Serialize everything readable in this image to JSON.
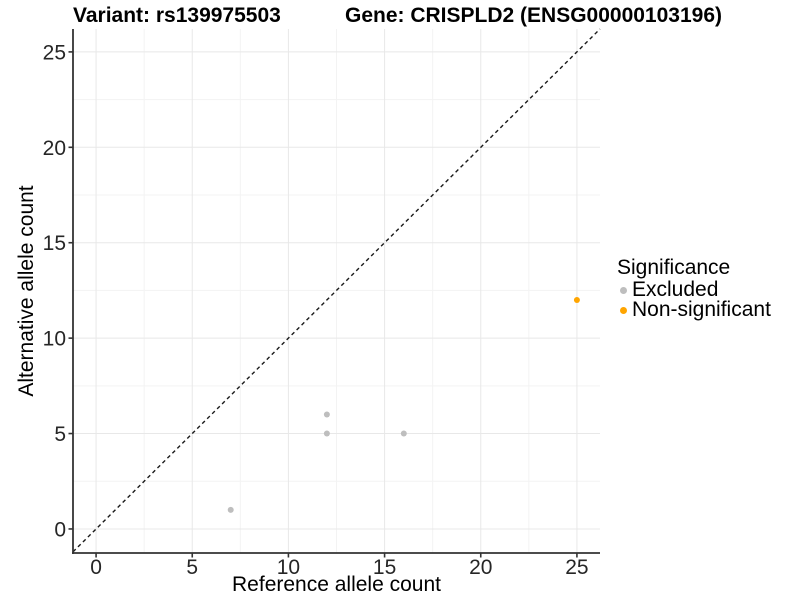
{
  "chart_data": {
    "type": "scatter",
    "title_left": "Variant: rs139975503",
    "title_right": "Gene: CRISPLD2 (ENSG00000103196)",
    "xlabel": "Reference allele count",
    "ylabel": "Alternative allele count",
    "xlim": [
      -1.2,
      26.2
    ],
    "ylim": [
      -1.26,
      26.2
    ],
    "xticks": [
      0,
      5,
      10,
      15,
      20,
      25
    ],
    "yticks": [
      0,
      5,
      10,
      15,
      20,
      25
    ],
    "minor_ticks": [
      2.5,
      7.5,
      12.5,
      17.5,
      22.5
    ],
    "grid": "major+minor",
    "identity_line": {
      "style": "dashed",
      "from": [
        -1.2,
        -1.2
      ],
      "to": [
        26.2,
        26.2
      ]
    },
    "legend": {
      "title": "Significance",
      "position": "right",
      "entries": [
        {
          "label": "Excluded",
          "color": "#BEBEBE"
        },
        {
          "label": "Non-significant",
          "color": "#FFA500"
        }
      ]
    },
    "series": [
      {
        "name": "Excluded",
        "color": "#BEBEBE",
        "point_radius": 3,
        "points": [
          [
            7,
            1
          ],
          [
            12,
            5
          ],
          [
            12,
            6
          ],
          [
            16,
            5
          ]
        ]
      },
      {
        "name": "Non-significant",
        "color": "#FFA500",
        "point_radius": 3,
        "points": [
          [
            25,
            12
          ]
        ]
      }
    ]
  },
  "colors": {
    "background": "#FFFFFF",
    "grid_major": "#E8E8E8",
    "grid_minor": "#F3F3F3",
    "axis_line": "#333333",
    "tick_mark": "#333333",
    "tick_label": "#262626",
    "dashed_line": "#1A1A1A"
  }
}
